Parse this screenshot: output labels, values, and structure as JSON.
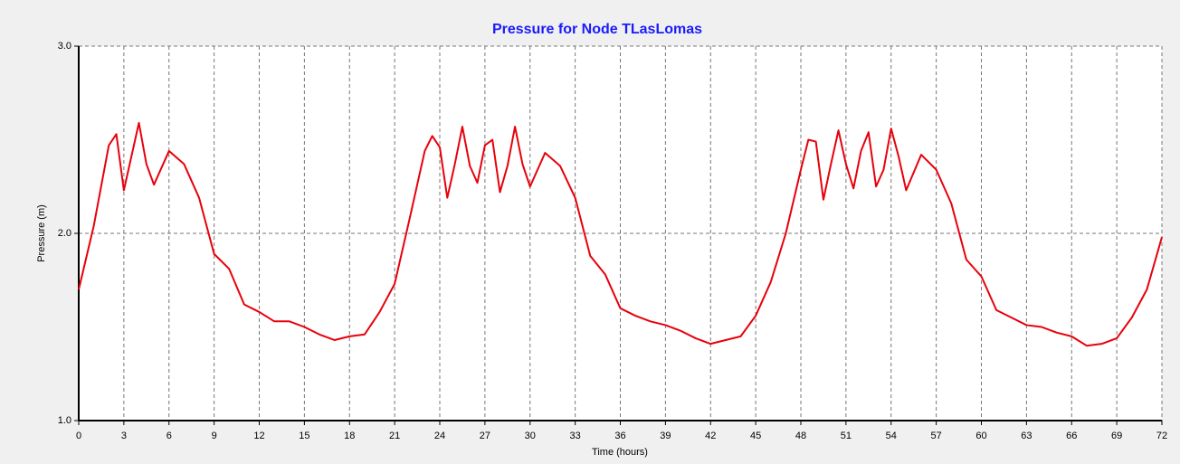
{
  "chart_data": {
    "type": "line",
    "title": "Pressure for Node TLasLomas",
    "xlabel": "Time (hours)",
    "ylabel": "Pressure (m)",
    "x": [
      0,
      1,
      2,
      2.5,
      3,
      4,
      4.5,
      5,
      6,
      7,
      8,
      9,
      10,
      11,
      12,
      13,
      14,
      15,
      16,
      17,
      18,
      19,
      20,
      21,
      22,
      23,
      23.5,
      24,
      24.5,
      25,
      25.5,
      26,
      26.5,
      27,
      27.5,
      28,
      28.5,
      29,
      29.5,
      30,
      31,
      32,
      33,
      34,
      35,
      36,
      37,
      38,
      39,
      40,
      41,
      42,
      43,
      44,
      45,
      46,
      47,
      48,
      48.5,
      49,
      49.5,
      50,
      50.5,
      51,
      51.5,
      52,
      52.5,
      53,
      53.5,
      54,
      54.5,
      55,
      56,
      57,
      58,
      59,
      60,
      61,
      62,
      63,
      64,
      65,
      66,
      67,
      68,
      69,
      70,
      71,
      72
    ],
    "values": [
      1.7,
      2.04,
      2.47,
      2.53,
      2.23,
      2.59,
      2.37,
      2.26,
      2.44,
      2.37,
      2.19,
      1.89,
      1.81,
      1.62,
      1.58,
      1.53,
      1.53,
      1.5,
      1.46,
      1.43,
      1.45,
      1.46,
      1.58,
      1.73,
      2.08,
      2.44,
      2.52,
      2.46,
      2.19,
      2.37,
      2.57,
      2.36,
      2.27,
      2.47,
      2.5,
      2.22,
      2.36,
      2.57,
      2.37,
      2.25,
      2.43,
      2.36,
      2.19,
      1.88,
      1.78,
      1.6,
      1.56,
      1.53,
      1.51,
      1.48,
      1.44,
      1.41,
      1.43,
      1.45,
      1.56,
      1.74,
      2.0,
      2.34,
      2.5,
      2.49,
      2.18,
      2.37,
      2.55,
      2.37,
      2.24,
      2.44,
      2.54,
      2.25,
      2.34,
      2.56,
      2.41,
      2.23,
      2.42,
      2.34,
      2.16,
      1.86,
      1.77,
      1.59,
      1.55,
      1.51,
      1.5,
      1.47,
      1.45,
      1.4,
      1.41,
      1.44,
      1.55,
      1.7,
      1.98
    ],
    "color": "#e8000b",
    "xlim": [
      0,
      72
    ],
    "xticks": [
      0,
      3,
      6,
      9,
      12,
      15,
      18,
      21,
      24,
      27,
      30,
      33,
      36,
      39,
      42,
      45,
      48,
      51,
      54,
      57,
      60,
      63,
      66,
      69,
      72
    ],
    "ylim": [
      1,
      3
    ],
    "yticks": [
      {
        "value": 1,
        "label": "1.0"
      },
      {
        "value": 2,
        "label": "2.0"
      },
      {
        "value": 3,
        "label": "3.0"
      }
    ],
    "grid": true
  }
}
